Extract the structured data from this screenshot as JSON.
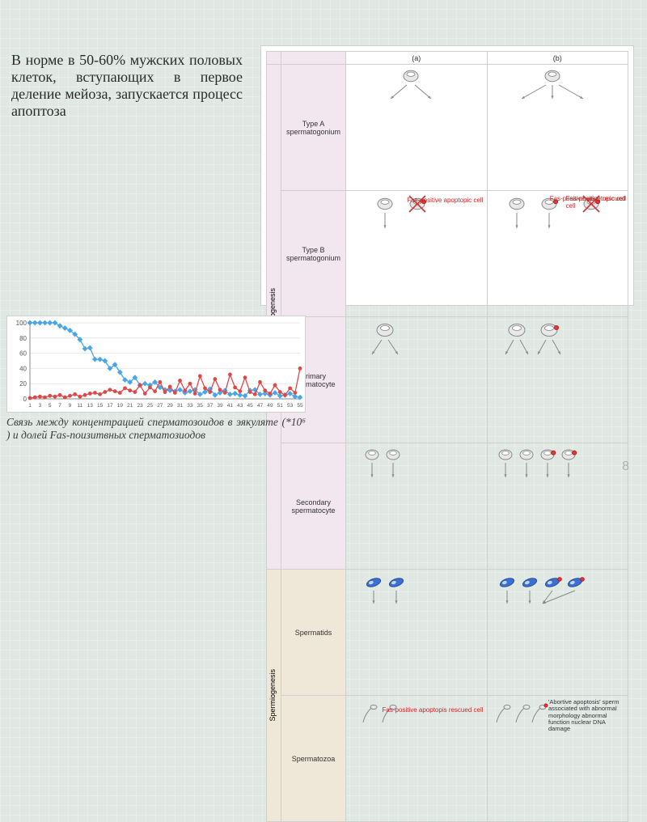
{
  "mainText": "В норме в 50-60% мужских половых клеток, вступающих в первое деление мейоза, запускается процесс апоптоза",
  "caption": "Связь между концентрацией сперматозоидов в эякуляте (*10⁶ ) и долей Fas-поизитвных сперматозиодов",
  "pageNumber": "8",
  "diagram": {
    "colHeads": {
      "a": "(a)",
      "b": "(b)"
    },
    "groups": {
      "spg": "Spermatogenesis",
      "spi": "Spermiogenesis"
    },
    "stages": [
      "Type A spermatogonium",
      "Type B spermatogonium",
      "Primary spermatocyte",
      "Secondary spermatocyte",
      "Spermatids",
      "Spermatozoa"
    ],
    "labels": {
      "fasApoptic": "Fas-positive\napoptopic cell",
      "fasRescued": "Fas-positive\nrescued cell",
      "fasApoptosisRescued": "Fas-positive\napoptopis\nrescued cell",
      "abortive": "'Abortive apoptosis' sperm associated with abnormal morphology abnormal function nuclear DNA damage"
    },
    "colors": {
      "cellFill": "#e8e8e8",
      "cellStroke": "#888",
      "red": "#e53935",
      "redStroke": "#b71c1c",
      "blue": "#3b6fd1",
      "blueStroke": "#2a4f96",
      "arrow": "#888",
      "x": "#d32f2f"
    }
  },
  "chart": {
    "ylim": [
      0,
      100
    ],
    "ytick_step": 20,
    "x_count": 55,
    "colors": {
      "blue": "#49a6e8",
      "red": "#e04848",
      "axis": "#888",
      "grid": "#e9e9e9",
      "bg": "#ffffff"
    },
    "marker_size": 2.4,
    "line_width": 1.3,
    "blue": [
      100,
      100,
      100,
      100,
      100,
      100,
      96,
      93,
      90,
      85,
      78,
      66,
      67,
      52,
      52,
      50,
      40,
      45,
      35,
      25,
      22,
      28,
      18,
      20,
      18,
      22,
      15,
      12,
      11,
      10,
      12,
      8,
      10,
      12,
      6,
      9,
      13,
      5,
      8,
      11,
      6,
      7,
      5,
      4,
      11,
      12,
      6,
      7,
      5,
      8,
      4,
      5,
      7,
      3,
      2
    ],
    "red": [
      1,
      2,
      3,
      2,
      4,
      3,
      5,
      2,
      4,
      6,
      3,
      5,
      7,
      8,
      6,
      9,
      12,
      10,
      8,
      14,
      11,
      9,
      18,
      7,
      15,
      10,
      22,
      9,
      16,
      8,
      24,
      11,
      20,
      7,
      30,
      14,
      9,
      26,
      12,
      8,
      32,
      15,
      10,
      28,
      9,
      6,
      22,
      11,
      7,
      18,
      9,
      5,
      14,
      8,
      40
    ]
  }
}
